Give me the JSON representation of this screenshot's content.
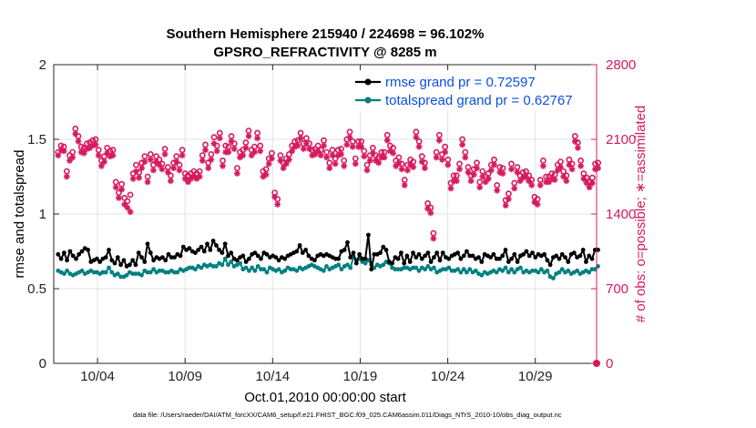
{
  "chart_data": {
    "type": "line",
    "title": "Southern Hemisphere 215940 / 224698 = 96.102%",
    "subtitle": "GPSRO_REFRACTIVITY @ 8285 m",
    "xlabel": "Oct.01,2010 00:00:00 start",
    "ylabel": "rmse and totalspread",
    "y2label": "# of obs: o=possible; ∗=assimilated",
    "footnote": "data file: /Users/raeder/DAI/ATM_forcXX/CAM6_setup/f.e21.FHIST_BGC.f09_025.CAM6assim.011/Diags_NTrS_2010-10/obs_diag_output.nc",
    "xlim": [
      1.5,
      32.5
    ],
    "ylim": [
      0,
      2
    ],
    "y2lim": [
      0,
      2800
    ],
    "xticks": [
      4,
      9,
      14,
      19,
      24,
      29
    ],
    "xtick_labels": [
      "10/04",
      "10/09",
      "10/14",
      "10/19",
      "10/24",
      "10/29"
    ],
    "yticks": [
      0,
      0.5,
      1,
      1.5,
      2
    ],
    "ytick_labels": [
      "0",
      "0.5",
      "1",
      "1.5",
      "2"
    ],
    "y2ticks": [
      0,
      700,
      1400,
      2100,
      2800
    ],
    "y2tick_labels": [
      "0",
      "700",
      "1400",
      "2100",
      "2800"
    ],
    "grid": true,
    "legend_position": "top-right",
    "colors": {
      "rmse": "#000000",
      "spread": "#008080",
      "obs": "#d6195f",
      "axis": "#262626",
      "grid": "#e3e3e3",
      "legend_text": "#0b4fe0"
    },
    "series": [
      {
        "name": "rmse grand pr = 0.72597",
        "axis": "left",
        "values": [
          0.73,
          0.7,
          0.74,
          0.69,
          0.75,
          0.72,
          0.7,
          0.73,
          0.75,
          0.77,
          0.76,
          0.68,
          0.69,
          0.7,
          0.68,
          0.7,
          0.71,
          0.76,
          0.69,
          0.67,
          0.71,
          0.66,
          0.69,
          0.65,
          0.66,
          0.69,
          0.66,
          0.74,
          0.71,
          0.68,
          0.8,
          0.74,
          0.69,
          0.71,
          0.7,
          0.71,
          0.69,
          0.73,
          0.71,
          0.71,
          0.73,
          0.72,
          0.78,
          0.76,
          0.77,
          0.75,
          0.74,
          0.76,
          0.78,
          0.75,
          0.8,
          0.76,
          0.82,
          0.79,
          0.76,
          0.74,
          0.8,
          0.72,
          0.74,
          0.7,
          0.69,
          0.71,
          0.72,
          0.68,
          0.7,
          0.73,
          0.74,
          0.72,
          0.7,
          0.74,
          0.73,
          0.71,
          0.72,
          0.71,
          0.69,
          0.71,
          0.7,
          0.72,
          0.73,
          0.74,
          0.75,
          0.79,
          0.74,
          0.76,
          0.72,
          0.7,
          0.69,
          0.72,
          0.73,
          0.72,
          0.73,
          0.72,
          0.71,
          0.7,
          0.7,
          0.75,
          0.76,
          0.81,
          0.71,
          0.74,
          0.67,
          0.73,
          0.7,
          0.7,
          0.86,
          0.63,
          0.73,
          0.73,
          0.74,
          0.78,
          0.76,
          0.68,
          0.67,
          0.71,
          0.7,
          0.74,
          0.67,
          0.72,
          0.68,
          0.74,
          0.71,
          0.73,
          0.7,
          0.72,
          0.74,
          0.68,
          0.71,
          0.74,
          0.69,
          0.74,
          0.71,
          0.7,
          0.72,
          0.73,
          0.74,
          0.7,
          0.72,
          0.75,
          0.72,
          0.72,
          0.7,
          0.71,
          0.68,
          0.73,
          0.72,
          0.71,
          0.73,
          0.7,
          0.7,
          0.72,
          0.76,
          0.68,
          0.7,
          0.73,
          0.68,
          0.72,
          0.73,
          0.75,
          0.72,
          0.74,
          0.71,
          0.73,
          0.72,
          0.73,
          0.69,
          0.66,
          0.71,
          0.72,
          0.7,
          0.73,
          0.71,
          0.68,
          0.73,
          0.74,
          0.71,
          0.72,
          0.76,
          0.68,
          0.72,
          0.7,
          0.76,
          0.76
        ]
      },
      {
        "name": "totalspread grand pr = 0.62767",
        "axis": "left",
        "values": [
          0.62,
          0.61,
          0.6,
          0.62,
          0.6,
          0.59,
          0.6,
          0.61,
          0.62,
          0.6,
          0.61,
          0.62,
          0.61,
          0.61,
          0.6,
          0.61,
          0.61,
          0.64,
          0.61,
          0.59,
          0.6,
          0.58,
          0.58,
          0.59,
          0.61,
          0.6,
          0.6,
          0.6,
          0.59,
          0.62,
          0.61,
          0.61,
          0.63,
          0.61,
          0.62,
          0.62,
          0.61,
          0.61,
          0.62,
          0.61,
          0.61,
          0.63,
          0.62,
          0.63,
          0.64,
          0.64,
          0.63,
          0.65,
          0.64,
          0.66,
          0.65,
          0.66,
          0.65,
          0.65,
          0.67,
          0.66,
          0.7,
          0.66,
          0.68,
          0.65,
          0.66,
          0.67,
          0.63,
          0.64,
          0.62,
          0.64,
          0.62,
          0.65,
          0.63,
          0.63,
          0.61,
          0.64,
          0.63,
          0.62,
          0.63,
          0.61,
          0.62,
          0.64,
          0.63,
          0.63,
          0.62,
          0.64,
          0.63,
          0.64,
          0.65,
          0.66,
          0.65,
          0.64,
          0.63,
          0.62,
          0.65,
          0.63,
          0.64,
          0.65,
          0.66,
          0.63,
          0.65,
          0.66,
          0.64,
          0.71,
          0.69,
          0.7,
          0.68,
          0.67,
          0.69,
          0.66,
          0.64,
          0.66,
          0.65,
          0.66,
          0.68,
          0.67,
          0.64,
          0.63,
          0.63,
          0.63,
          0.64,
          0.64,
          0.63,
          0.64,
          0.64,
          0.62,
          0.64,
          0.63,
          0.65,
          0.63,
          0.64,
          0.61,
          0.62,
          0.63,
          0.63,
          0.64,
          0.62,
          0.62,
          0.63,
          0.61,
          0.63,
          0.61,
          0.63,
          0.61,
          0.62,
          0.6,
          0.59,
          0.61,
          0.6,
          0.61,
          0.62,
          0.61,
          0.63,
          0.62,
          0.64,
          0.61,
          0.63,
          0.61,
          0.63,
          0.64,
          0.61,
          0.62,
          0.61,
          0.62,
          0.62,
          0.61,
          0.63,
          0.61,
          0.62,
          0.58,
          0.57,
          0.6,
          0.61,
          0.63,
          0.61,
          0.62,
          0.6,
          0.61,
          0.62,
          0.6,
          0.61,
          0.62,
          0.61,
          0.63,
          0.63,
          0.65
        ]
      },
      {
        "name": "possible",
        "axis": "right",
        "marker": "o",
        "values": [
          1980,
          2040,
          2030,
          1800,
          1950,
          1980,
          2200,
          2130,
          2030,
          2020,
          2060,
          2070,
          2090,
          2100,
          2000,
          1900,
          1940,
          2020,
          1990,
          2000,
          1700,
          1600,
          1680,
          1550,
          1520,
          1580,
          1780,
          1860,
          1790,
          1880,
          1940,
          1750,
          1960,
          1860,
          1940,
          1910,
          1870,
          2010,
          1840,
          1760,
          1880,
          1940,
          1860,
          2000,
          1780,
          1760,
          1780,
          1800,
          1780,
          1800,
          1950,
          2050,
          1880,
          1960,
          2120,
          2040,
          2160,
          1900,
          2040,
          2030,
          2130,
          2060,
          1830,
          1980,
          2000,
          2070,
          2180,
          2000,
          2030,
          2160,
          2040,
          1800,
          1820,
          1920,
          1970,
          1600,
          1540,
          1950,
          1880,
          1920,
          1960,
          2040,
          2080,
          2090,
          2160,
          2060,
          2110,
          2060,
          2000,
          2010,
          2040,
          2000,
          2090,
          1980,
          1880,
          2000,
          1920,
          2000,
          2010,
          1900,
          2100,
          2170,
          2080,
          1920,
          2080,
          2080,
          1990,
          1860,
          1950,
          2020,
          1950,
          1930,
          1980,
          1980,
          2140,
          2040,
          2020,
          1900,
          1930,
          1870,
          1720,
          1860,
          1910,
          1890,
          2170,
          2080,
          1940,
          1880,
          1500,
          1460,
          1220,
          1980,
          2140,
          1960,
          2030,
          1910,
          1690,
          1760,
          1760,
          1870,
          2100,
          1980,
          1840,
          1760,
          1820,
          1880,
          1700,
          1800,
          1750,
          1780,
          1860,
          1910,
          1670,
          1840,
          1830,
          1530,
          1590,
          1870,
          1690,
          1840,
          1760,
          1790,
          1800,
          1760,
          1720,
          1560,
          1540,
          1720,
          1900,
          1750,
          1750,
          1780,
          1770,
          1860,
          1890,
          1800,
          1760,
          1910,
          1870,
          2130,
          2070,
          1900,
          1780,
          1740,
          1700,
          1740,
          1870,
          1880
        ]
      },
      {
        "name": "assimilated",
        "axis": "right",
        "marker": "*",
        "values": [
          1950,
          2000,
          1990,
          1750,
          1900,
          1930,
          2150,
          2080,
          1980,
          1970,
          2010,
          2020,
          2040,
          2050,
          1950,
          1850,
          1890,
          1970,
          1940,
          1950,
          1650,
          1550,
          1630,
          1490,
          1460,
          1420,
          1730,
          1800,
          1740,
          1830,
          1890,
          1700,
          1910,
          1810,
          1890,
          1860,
          1820,
          1960,
          1790,
          1710,
          1830,
          1890,
          1810,
          1950,
          1730,
          1700,
          1730,
          1750,
          1730,
          1750,
          1900,
          2000,
          1830,
          1910,
          2060,
          1990,
          2110,
          1850,
          1980,
          1980,
          2080,
          2010,
          1780,
          1930,
          1950,
          2020,
          2130,
          1950,
          1980,
          2110,
          1990,
          1750,
          1770,
          1870,
          1920,
          1560,
          1490,
          1900,
          1830,
          1870,
          1910,
          1990,
          2030,
          2040,
          2110,
          2010,
          2060,
          2010,
          1950,
          1960,
          1990,
          1950,
          2040,
          1930,
          1830,
          1950,
          1870,
          1950,
          1960,
          1850,
          2050,
          2120,
          2030,
          1870,
          2030,
          2030,
          1940,
          1810,
          1900,
          1970,
          1900,
          1880,
          1930,
          1930,
          2090,
          1990,
          1970,
          1850,
          1880,
          1820,
          1670,
          1810,
          1860,
          1840,
          2120,
          2030,
          1890,
          1830,
          1450,
          1410,
          1170,
          1930,
          2090,
          1910,
          1980,
          1860,
          1640,
          1710,
          1710,
          1820,
          2050,
          1930,
          1790,
          1710,
          1770,
          1830,
          1650,
          1750,
          1700,
          1730,
          1810,
          1860,
          1620,
          1790,
          1780,
          1480,
          1540,
          1820,
          1640,
          1790,
          1710,
          1740,
          1750,
          1710,
          1670,
          1510,
          1490,
          1670,
          1850,
          1700,
          1700,
          1730,
          1720,
          1810,
          1840,
          1750,
          1710,
          1860,
          1820,
          2080,
          2020,
          1850,
          1730,
          1690,
          1650,
          1690,
          1820,
          1830
        ]
      }
    ]
  }
}
